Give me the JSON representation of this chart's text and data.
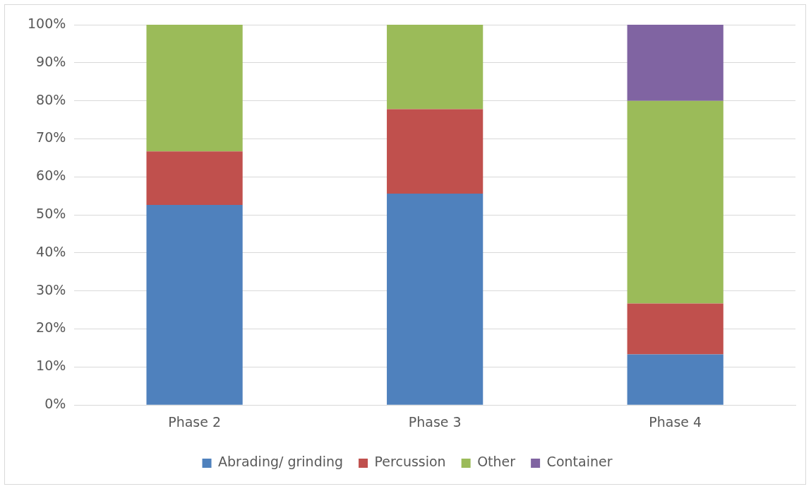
{
  "chart_data": {
    "type": "bar",
    "stacked": true,
    "categories": [
      "Phase 2",
      "Phase 3",
      "Phase 4"
    ],
    "series": [
      {
        "name": "Abrading/ grinding",
        "color": "#4f81bd",
        "values": [
          52.6,
          55.6,
          13.3
        ]
      },
      {
        "name": "Percussion",
        "color": "#c0504d",
        "values": [
          14.1,
          22.2,
          13.4
        ]
      },
      {
        "name": "Other",
        "color": "#9bbb59",
        "values": [
          33.3,
          22.2,
          53.3
        ]
      },
      {
        "name": "Container",
        "color": "#8064a2",
        "values": [
          0,
          0,
          20
        ]
      }
    ],
    "ylim": [
      0,
      100
    ],
    "yticks": [
      {
        "value": 0,
        "label": "0%"
      },
      {
        "value": 10,
        "label": "10%"
      },
      {
        "value": 20,
        "label": "20%"
      },
      {
        "value": 30,
        "label": "30%"
      },
      {
        "value": 40,
        "label": "40%"
      },
      {
        "value": 50,
        "label": "50%"
      },
      {
        "value": 60,
        "label": "60%"
      },
      {
        "value": 70,
        "label": "70%"
      },
      {
        "value": 80,
        "label": "80%"
      },
      {
        "value": 90,
        "label": "90%"
      },
      {
        "value": 100,
        "label": "100%"
      }
    ],
    "grid": "y",
    "legend": "bottom"
  }
}
